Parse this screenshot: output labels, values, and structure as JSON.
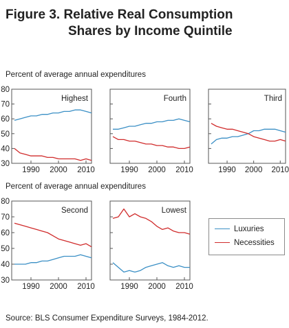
{
  "figure": {
    "title_line1": "Figure 3.  Relative Real Consumption",
    "title_line2": "Shares by Income Quintile",
    "source": "Source:  BLS Consumer Expenditure Surveys, 1984-2012."
  },
  "row_labels": [
    "Percent of average annual expenditures",
    "Percent of average annual expenditures"
  ],
  "legend": {
    "luxuries_label": "Luxuries",
    "necessities_label": "Necessities"
  },
  "colors": {
    "luxuries": "#3a8fc5",
    "necessities": "#d02b2b",
    "axis": "#555555"
  },
  "chart_data": [
    {
      "type": "line",
      "title": "Highest",
      "x": [
        1984,
        1986,
        1988,
        1990,
        1992,
        1994,
        1996,
        1998,
        2000,
        2002,
        2004,
        2006,
        2008,
        2010,
        2012
      ],
      "xlim": [
        1983,
        2012
      ],
      "ylim": [
        30,
        80
      ],
      "yticks": [
        30,
        40,
        50,
        60,
        70,
        80
      ],
      "ytick_labels": [
        "30",
        "40",
        "50",
        "60",
        "70",
        "80"
      ],
      "xticks": [
        1990,
        2000,
        2010
      ],
      "xtick_labels": [
        "1990",
        "2000",
        "2010"
      ],
      "series": [
        {
          "name": "Luxuries",
          "values": [
            59,
            60,
            61,
            62,
            62,
            63,
            63,
            64,
            64,
            65,
            65,
            66,
            66,
            65,
            64
          ]
        },
        {
          "name": "Necessities",
          "values": [
            40,
            37,
            36,
            35,
            35,
            35,
            34,
            34,
            33,
            33,
            33,
            33,
            32,
            33,
            32
          ]
        }
      ]
    },
    {
      "type": "line",
      "title": "Fourth",
      "x": [
        1984,
        1986,
        1988,
        1990,
        1992,
        1994,
        1996,
        1998,
        2000,
        2002,
        2004,
        2006,
        2008,
        2010,
        2012
      ],
      "xlim": [
        1983,
        2012
      ],
      "ylim": [
        30,
        80
      ],
      "xticks": [
        1990,
        2000,
        2010
      ],
      "xtick_labels": [
        "1990",
        "2000",
        "2010"
      ],
      "series": [
        {
          "name": "Luxuries",
          "values": [
            53,
            53,
            54,
            55,
            55,
            56,
            57,
            57,
            58,
            58,
            59,
            59,
            60,
            59,
            58
          ]
        },
        {
          "name": "Necessities",
          "values": [
            48,
            46,
            46,
            45,
            45,
            44,
            43,
            43,
            42,
            42,
            41,
            41,
            40,
            40,
            41
          ]
        }
      ]
    },
    {
      "type": "line",
      "title": "Third",
      "x": [
        1984,
        1986,
        1988,
        1990,
        1992,
        1994,
        1996,
        1998,
        2000,
        2002,
        2004,
        2006,
        2008,
        2010,
        2012
      ],
      "xlim": [
        1983,
        2012
      ],
      "ylim": [
        30,
        80
      ],
      "xticks": [
        1990,
        2000,
        2010
      ],
      "xtick_labels": [
        "1990",
        "2000",
        "2010"
      ],
      "series": [
        {
          "name": "Luxuries",
          "values": [
            43,
            46,
            47,
            47,
            48,
            48,
            49,
            50,
            52,
            52,
            53,
            53,
            53,
            52,
            51
          ]
        },
        {
          "name": "Necessities",
          "values": [
            57,
            55,
            54,
            53,
            53,
            52,
            51,
            50,
            48,
            47,
            46,
            45,
            45,
            46,
            45
          ]
        }
      ]
    },
    {
      "type": "line",
      "title": "Second",
      "x": [
        1984,
        1986,
        1988,
        1990,
        1992,
        1994,
        1996,
        1998,
        2000,
        2002,
        2004,
        2006,
        2008,
        2010,
        2012
      ],
      "xlim": [
        1983,
        2012
      ],
      "ylim": [
        30,
        80
      ],
      "yticks": [
        30,
        40,
        50,
        60,
        70,
        80
      ],
      "ytick_labels": [
        "30",
        "40",
        "50",
        "60",
        "70",
        "80"
      ],
      "xticks": [
        1990,
        2000,
        2010
      ],
      "xtick_labels": [
        "1990",
        "2000",
        "2010"
      ],
      "series": [
        {
          "name": "Luxuries",
          "values": [
            40,
            40,
            40,
            41,
            41,
            42,
            42,
            43,
            44,
            45,
            45,
            45,
            46,
            45,
            44
          ]
        },
        {
          "name": "Necessities",
          "values": [
            66,
            65,
            64,
            63,
            62,
            61,
            60,
            58,
            56,
            55,
            54,
            53,
            52,
            53,
            51
          ]
        }
      ]
    },
    {
      "type": "line",
      "title": "Lowest",
      "x": [
        1984,
        1986,
        1988,
        1990,
        1992,
        1994,
        1996,
        1998,
        2000,
        2002,
        2004,
        2006,
        2008,
        2010,
        2012
      ],
      "xlim": [
        1983,
        2012
      ],
      "ylim": [
        30,
        80
      ],
      "xticks": [
        1990,
        2000,
        2010
      ],
      "xtick_labels": [
        "1990",
        "2000",
        "2010"
      ],
      "series": [
        {
          "name": "Luxuries",
          "values": [
            41,
            38,
            35,
            36,
            35,
            36,
            38,
            39,
            40,
            41,
            39,
            38,
            39,
            38,
            38
          ]
        },
        {
          "name": "Necessities",
          "values": [
            69,
            70,
            75,
            70,
            72,
            70,
            69,
            67,
            64,
            62,
            63,
            61,
            60,
            60,
            59
          ]
        }
      ]
    }
  ]
}
